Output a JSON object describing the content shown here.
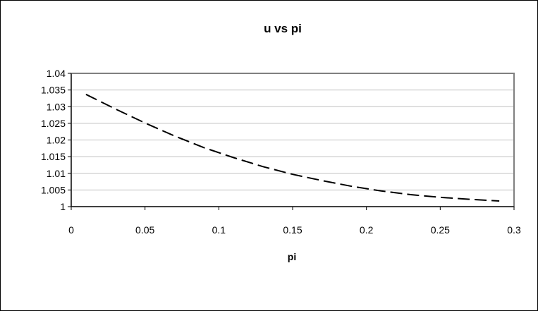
{
  "chart_data": {
    "type": "line",
    "title": "u vs pi",
    "xlabel": "pi",
    "ylabel": "",
    "xlim": [
      0,
      0.3
    ],
    "ylim": [
      1,
      1.04
    ],
    "x_ticks": [
      "0",
      "0.05",
      "0.1",
      "0.15",
      "0.2",
      "0.25",
      "0.3"
    ],
    "y_ticks": [
      "1",
      "1.005",
      "1.01",
      "1.015",
      "1.02",
      "1.025",
      "1.03",
      "1.035",
      "1.04"
    ],
    "grid": "horizontal",
    "legend": "none",
    "series": [
      {
        "line_color": "#000000",
        "line_style": "dashed",
        "x": [
          0.01,
          0.03,
          0.05,
          0.07,
          0.09,
          0.11,
          0.13,
          0.15,
          0.17,
          0.19,
          0.21,
          0.23,
          0.25,
          0.27,
          0.29
        ],
        "y": [
          1.0337,
          1.0293,
          1.0251,
          1.0212,
          1.0177,
          1.0147,
          1.012,
          1.0097,
          1.0078,
          1.0061,
          1.0047,
          1.0036,
          1.0028,
          1.0022,
          1.0017
        ]
      }
    ]
  }
}
